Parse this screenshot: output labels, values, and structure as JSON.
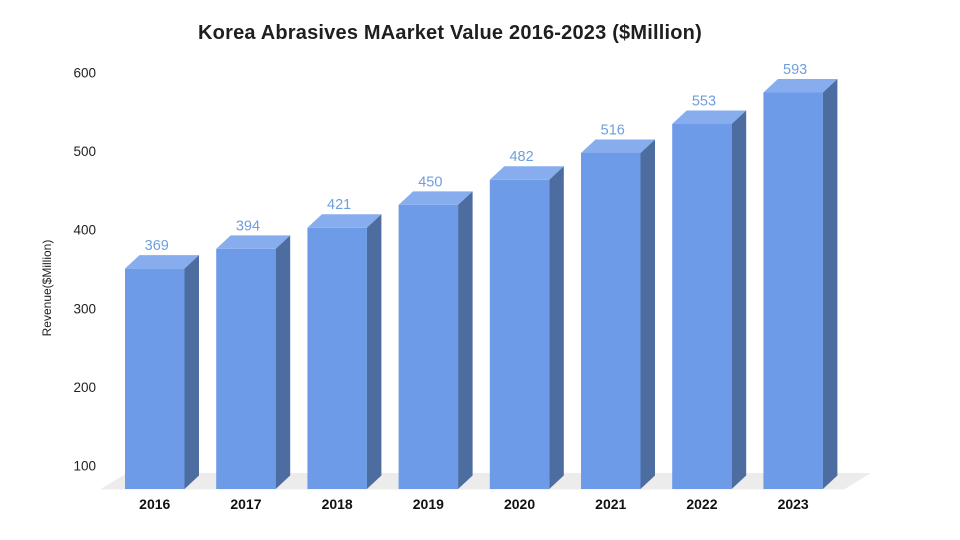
{
  "page": {
    "background_color": "#ffffff"
  },
  "chart_data": {
    "type": "bar",
    "variant": "3d-column",
    "title": "Korea Abrasives MAarket Value 2016-2023 ($Million)",
    "xlabel": "",
    "ylabel": "Revenue($Million)",
    "categories": [
      "2016",
      "2017",
      "2018",
      "2019",
      "2020",
      "2021",
      "2022",
      "2023"
    ],
    "values": [
      369,
      394,
      421,
      450,
      482,
      516,
      553,
      593
    ],
    "yticks": [
      100,
      200,
      300,
      400,
      500,
      600
    ],
    "ylim": [
      100,
      600
    ],
    "grid": false,
    "legend": "none",
    "value_labels_shown": true,
    "colors": {
      "bar_front": "#6d9be8",
      "bar_top": "#87adee",
      "bar_side": "#4d6da1",
      "value_label": "#6f9fdb",
      "floor": "#ececec",
      "title_text": "#1f1f1f",
      "axis_tick_text": "#222222",
      "category_text": "#111111"
    }
  }
}
